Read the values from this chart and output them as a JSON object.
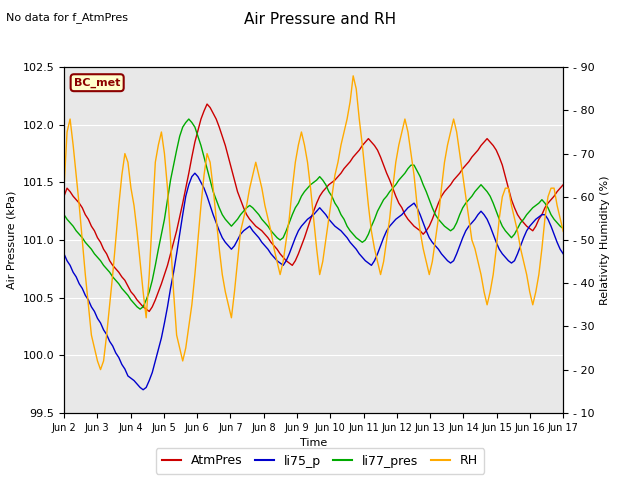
{
  "title": "Air Pressure and RH",
  "subtitle": "No data for f_AtmPres",
  "station_label": "BC_met",
  "xlabel": "Time",
  "ylabel_left": "Air Pressure (kPa)",
  "ylabel_right": "Relativity Humidity (%)",
  "ylim_left": [
    99.5,
    102.5
  ],
  "ylim_right": [
    10,
    90
  ],
  "yticks_left": [
    99.5,
    100.0,
    100.5,
    101.0,
    101.5,
    102.0,
    102.5
  ],
  "yticks_right": [
    10,
    20,
    30,
    40,
    50,
    60,
    70,
    80,
    90
  ],
  "xtick_labels": [
    "Jun 2",
    "Jun 3",
    "Jun 4",
    "Jun 5",
    "Jun 6",
    "Jun 7",
    "Jun 8",
    "Jun 9",
    "Jun 10",
    "Jun 11",
    "Jun 12",
    "Jun 13",
    "Jun 14",
    "Jun 15",
    "Jun 16",
    "Jun 17"
  ],
  "colors": {
    "AtmPres": "#cc0000",
    "li75_p": "#0000cc",
    "li77_pres": "#00aa00",
    "RH": "#ffaa00"
  },
  "background_color": "#ffffff",
  "plot_bg_color": "#e8e8e8",
  "legend_labels": [
    "AtmPres",
    "li75_p",
    "li77_pres",
    "RH"
  ],
  "AtmPres": [
    101.38,
    101.45,
    101.42,
    101.38,
    101.35,
    101.32,
    101.28,
    101.22,
    101.18,
    101.12,
    101.08,
    101.02,
    100.98,
    100.92,
    100.88,
    100.82,
    100.78,
    100.75,
    100.72,
    100.68,
    100.65,
    100.6,
    100.55,
    100.52,
    100.48,
    100.45,
    100.42,
    100.4,
    100.38,
    100.42,
    100.48,
    100.55,
    100.62,
    100.7,
    100.78,
    100.88,
    100.98,
    101.08,
    101.2,
    101.32,
    101.45,
    101.58,
    101.72,
    101.85,
    101.95,
    102.05,
    102.12,
    102.18,
    102.15,
    102.1,
    102.05,
    101.98,
    101.9,
    101.82,
    101.72,
    101.62,
    101.52,
    101.42,
    101.35,
    101.28,
    101.22,
    101.18,
    101.15,
    101.12,
    101.1,
    101.08,
    101.05,
    101.02,
    100.98,
    100.95,
    100.92,
    100.88,
    100.85,
    100.82,
    100.8,
    100.78,
    100.82,
    100.88,
    100.95,
    101.02,
    101.1,
    101.18,
    101.25,
    101.32,
    101.38,
    101.42,
    101.45,
    101.48,
    101.5,
    101.52,
    101.55,
    101.58,
    101.62,
    101.65,
    101.68,
    101.72,
    101.75,
    101.78,
    101.82,
    101.85,
    101.88,
    101.85,
    101.82,
    101.78,
    101.72,
    101.65,
    101.58,
    101.52,
    101.45,
    101.38,
    101.32,
    101.28,
    101.22,
    101.18,
    101.15,
    101.12,
    101.1,
    101.08,
    101.05,
    101.08,
    101.12,
    101.18,
    101.25,
    101.32,
    101.38,
    101.42,
    101.45,
    101.48,
    101.52,
    101.55,
    101.58,
    101.62,
    101.65,
    101.68,
    101.72,
    101.75,
    101.78,
    101.82,
    101.85,
    101.88,
    101.85,
    101.82,
    101.78,
    101.72,
    101.65,
    101.55,
    101.45,
    101.35,
    101.28,
    101.22,
    101.18,
    101.15,
    101.12,
    101.1,
    101.08,
    101.12,
    101.18,
    101.22,
    101.28,
    101.32,
    101.35,
    101.38,
    101.42,
    101.45,
    101.48,
    101.45,
    101.42,
    101.38,
    101.35,
    101.32,
    101.28,
    101.25,
    101.22,
    101.18,
    101.15
  ],
  "li75_p": [
    100.88,
    100.82,
    100.78,
    100.72,
    100.68,
    100.62,
    100.58,
    100.52,
    100.48,
    100.42,
    100.38,
    100.32,
    100.28,
    100.22,
    100.18,
    100.12,
    100.08,
    100.02,
    99.98,
    99.92,
    99.88,
    99.82,
    99.8,
    99.78,
    99.75,
    99.72,
    99.7,
    99.72,
    99.78,
    99.85,
    99.95,
    100.05,
    100.15,
    100.28,
    100.42,
    100.58,
    100.72,
    100.88,
    101.05,
    101.22,
    101.38,
    101.48,
    101.55,
    101.58,
    101.55,
    101.5,
    101.45,
    101.38,
    101.3,
    101.22,
    101.15,
    101.08,
    101.02,
    100.98,
    100.95,
    100.92,
    100.95,
    101.0,
    101.05,
    101.08,
    101.1,
    101.12,
    101.08,
    101.05,
    101.02,
    100.98,
    100.95,
    100.92,
    100.88,
    100.85,
    100.82,
    100.8,
    100.78,
    100.82,
    100.88,
    100.95,
    101.02,
    101.08,
    101.12,
    101.15,
    101.18,
    101.2,
    101.22,
    101.25,
    101.28,
    101.25,
    101.22,
    101.18,
    101.15,
    101.12,
    101.1,
    101.08,
    101.05,
    101.02,
    100.98,
    100.95,
    100.92,
    100.88,
    100.85,
    100.82,
    100.8,
    100.78,
    100.82,
    100.88,
    100.95,
    101.02,
    101.08,
    101.12,
    101.15,
    101.18,
    101.2,
    101.22,
    101.25,
    101.28,
    101.3,
    101.32,
    101.28,
    101.22,
    101.15,
    101.08,
    101.02,
    100.98,
    100.95,
    100.92,
    100.88,
    100.85,
    100.82,
    100.8,
    100.82,
    100.88,
    100.95,
    101.02,
    101.08,
    101.12,
    101.15,
    101.18,
    101.22,
    101.25,
    101.22,
    101.18,
    101.12,
    101.05,
    100.98,
    100.92,
    100.88,
    100.85,
    100.82,
    100.8,
    100.82,
    100.88,
    100.95,
    101.02,
    101.08,
    101.12,
    101.15,
    101.18,
    101.2,
    101.22,
    101.22,
    101.18,
    101.12,
    101.05,
    100.98,
    100.92,
    100.88
  ],
  "li77_pres": [
    101.22,
    101.18,
    101.15,
    101.12,
    101.08,
    101.05,
    101.02,
    100.98,
    100.95,
    100.92,
    100.88,
    100.85,
    100.82,
    100.78,
    100.75,
    100.72,
    100.68,
    100.65,
    100.62,
    100.58,
    100.55,
    100.52,
    100.48,
    100.45,
    100.42,
    100.4,
    100.42,
    100.48,
    100.55,
    100.65,
    100.78,
    100.92,
    101.05,
    101.18,
    101.35,
    101.52,
    101.65,
    101.78,
    101.9,
    101.98,
    102.02,
    102.05,
    102.02,
    101.98,
    101.9,
    101.82,
    101.72,
    101.62,
    101.52,
    101.42,
    101.35,
    101.28,
    101.22,
    101.18,
    101.15,
    101.12,
    101.15,
    101.18,
    101.22,
    101.25,
    101.28,
    101.3,
    101.28,
    101.25,
    101.22,
    101.18,
    101.15,
    101.12,
    101.08,
    101.05,
    101.02,
    101.0,
    101.02,
    101.08,
    101.15,
    101.22,
    101.28,
    101.32,
    101.38,
    101.42,
    101.45,
    101.48,
    101.5,
    101.52,
    101.55,
    101.52,
    101.48,
    101.42,
    101.38,
    101.32,
    101.28,
    101.22,
    101.18,
    101.12,
    101.08,
    101.05,
    101.02,
    101.0,
    100.98,
    101.0,
    101.05,
    101.12,
    101.18,
    101.25,
    101.3,
    101.35,
    101.38,
    101.42,
    101.45,
    101.48,
    101.52,
    101.55,
    101.58,
    101.62,
    101.65,
    101.65,
    101.6,
    101.55,
    101.48,
    101.42,
    101.35,
    101.28,
    101.22,
    101.18,
    101.15,
    101.12,
    101.1,
    101.08,
    101.1,
    101.15,
    101.22,
    101.28,
    101.32,
    101.35,
    101.38,
    101.42,
    101.45,
    101.48,
    101.45,
    101.42,
    101.38,
    101.32,
    101.25,
    101.18,
    101.12,
    101.08,
    101.05,
    101.02,
    101.05,
    101.1,
    101.15,
    101.18,
    101.22,
    101.25,
    101.28,
    101.3,
    101.32,
    101.35,
    101.32,
    101.28,
    101.22,
    101.18,
    101.15,
    101.12,
    101.1
  ],
  "RH": [
    62,
    75,
    78,
    72,
    65,
    58,
    50,
    42,
    35,
    28,
    25,
    22,
    20,
    22,
    28,
    35,
    42,
    50,
    58,
    65,
    70,
    68,
    62,
    58,
    52,
    45,
    38,
    32,
    42,
    55,
    68,
    72,
    75,
    70,
    62,
    50,
    38,
    28,
    25,
    22,
    25,
    30,
    35,
    42,
    50,
    58,
    65,
    70,
    68,
    62,
    55,
    48,
    42,
    38,
    35,
    32,
    38,
    45,
    52,
    55,
    58,
    62,
    65,
    68,
    65,
    62,
    58,
    55,
    52,
    48,
    45,
    42,
    45,
    50,
    55,
    62,
    68,
    72,
    75,
    72,
    68,
    62,
    55,
    48,
    42,
    45,
    50,
    55,
    60,
    65,
    68,
    72,
    75,
    78,
    82,
    88,
    85,
    78,
    72,
    65,
    58,
    52,
    48,
    45,
    42,
    45,
    50,
    55,
    62,
    68,
    72,
    75,
    78,
    75,
    70,
    65,
    58,
    52,
    48,
    45,
    42,
    45,
    50,
    55,
    62,
    68,
    72,
    75,
    78,
    75,
    70,
    65,
    60,
    55,
    50,
    48,
    45,
    42,
    38,
    35,
    38,
    42,
    48,
    55,
    60,
    62,
    62,
    58,
    55,
    52,
    48,
    45,
    42,
    38,
    35,
    38,
    42,
    48,
    55,
    60,
    62,
    62,
    58,
    55,
    52
  ]
}
